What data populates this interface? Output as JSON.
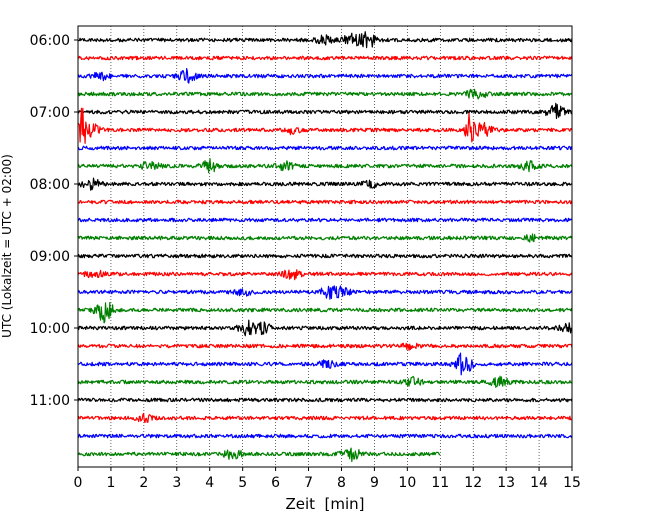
{
  "chart_data": {
    "type": "line",
    "title": "",
    "xlabel": "Zeit  [min]",
    "ylabel": "UTC (Lokalzeit = UTC + 02:00)",
    "xlim": [
      0,
      15
    ],
    "xticks": [
      "0",
      "1",
      "2",
      "3",
      "4",
      "5",
      "6",
      "7",
      "8",
      "9",
      "10",
      "11",
      "12",
      "13",
      "14",
      "15"
    ],
    "ytick_labels": [
      "06:00",
      "07:00",
      "08:00",
      "09:00",
      "10:00",
      "11:00"
    ],
    "grid": "vertical dotted",
    "trace_minutes": 15,
    "trace_colors": [
      "#000000",
      "#ff0000",
      "#0000ff",
      "#008000"
    ],
    "traces": [
      {
        "start": "06:00",
        "color": "#000000",
        "events": [
          {
            "t": 7.5,
            "amp": 0.6
          },
          {
            "t": 8.3,
            "amp": 0.8
          },
          {
            "t": 8.8,
            "amp": 1.2
          }
        ]
      },
      {
        "start": "06:15",
        "color": "#ff0000",
        "events": []
      },
      {
        "start": "06:30",
        "color": "#0000ff",
        "events": [
          {
            "t": 0.7,
            "amp": 0.5
          },
          {
            "t": 3.3,
            "amp": 1.0
          }
        ]
      },
      {
        "start": "06:45",
        "color": "#008000",
        "events": [
          {
            "t": 12.1,
            "amp": 0.9
          }
        ]
      },
      {
        "start": "07:00",
        "color": "#000000",
        "events": [
          {
            "t": 14.5,
            "amp": 1.1
          }
        ]
      },
      {
        "start": "07:15",
        "color": "#ff0000",
        "events": [
          {
            "t": 0.1,
            "amp": 3.5
          },
          {
            "t": 0.4,
            "amp": 1.0
          },
          {
            "t": 6.5,
            "amp": 0.5
          },
          {
            "t": 11.9,
            "amp": 2.5
          },
          {
            "t": 12.3,
            "amp": 1.0
          }
        ]
      },
      {
        "start": "07:30",
        "color": "#0000ff",
        "events": []
      },
      {
        "start": "07:45",
        "color": "#008000",
        "events": [
          {
            "t": 2.2,
            "amp": 0.7
          },
          {
            "t": 4.0,
            "amp": 0.9
          },
          {
            "t": 6.3,
            "amp": 0.7
          },
          {
            "t": 13.7,
            "amp": 0.6
          }
        ]
      },
      {
        "start": "08:00",
        "color": "#000000",
        "events": [
          {
            "t": 0.4,
            "amp": 0.8
          },
          {
            "t": 8.9,
            "amp": 0.4
          }
        ]
      },
      {
        "start": "08:15",
        "color": "#ff0000",
        "events": []
      },
      {
        "start": "08:30",
        "color": "#0000ff",
        "events": []
      },
      {
        "start": "08:45",
        "color": "#008000",
        "events": [
          {
            "t": 13.8,
            "amp": 0.4
          }
        ]
      },
      {
        "start": "09:00",
        "color": "#000000",
        "events": []
      },
      {
        "start": "09:15",
        "color": "#ff0000",
        "events": [
          {
            "t": 0.5,
            "amp": 0.5
          },
          {
            "t": 6.5,
            "amp": 0.7
          }
        ]
      },
      {
        "start": "09:30",
        "color": "#0000ff",
        "events": [
          {
            "t": 5.0,
            "amp": 0.5
          },
          {
            "t": 7.6,
            "amp": 0.8
          },
          {
            "t": 8.0,
            "amp": 0.6
          }
        ]
      },
      {
        "start": "09:45",
        "color": "#008000",
        "events": [
          {
            "t": 0.8,
            "amp": 1.8
          }
        ]
      },
      {
        "start": "10:00",
        "color": "#000000",
        "events": [
          {
            "t": 5.1,
            "amp": 1.0
          },
          {
            "t": 5.6,
            "amp": 0.8
          },
          {
            "t": 14.9,
            "amp": 0.6
          }
        ]
      },
      {
        "start": "10:15",
        "color": "#ff0000",
        "events": [
          {
            "t": 10.0,
            "amp": 0.5
          }
        ]
      },
      {
        "start": "10:30",
        "color": "#0000ff",
        "events": [
          {
            "t": 7.6,
            "amp": 0.5
          },
          {
            "t": 11.7,
            "amp": 1.6
          }
        ]
      },
      {
        "start": "10:45",
        "color": "#008000",
        "events": [
          {
            "t": 10.2,
            "amp": 0.6
          },
          {
            "t": 12.8,
            "amp": 0.7
          }
        ]
      },
      {
        "start": "11:00",
        "color": "#000000",
        "events": []
      },
      {
        "start": "11:15",
        "color": "#ff0000",
        "events": [
          {
            "t": 2.0,
            "amp": 0.5
          }
        ]
      },
      {
        "start": "11:30",
        "color": "#0000ff",
        "events": []
      },
      {
        "start": "11:45",
        "color": "#008000",
        "events": [
          {
            "t": 4.7,
            "amp": 0.8
          },
          {
            "t": 8.3,
            "amp": 1.0
          }
        ],
        "end": 11.0
      }
    ]
  }
}
